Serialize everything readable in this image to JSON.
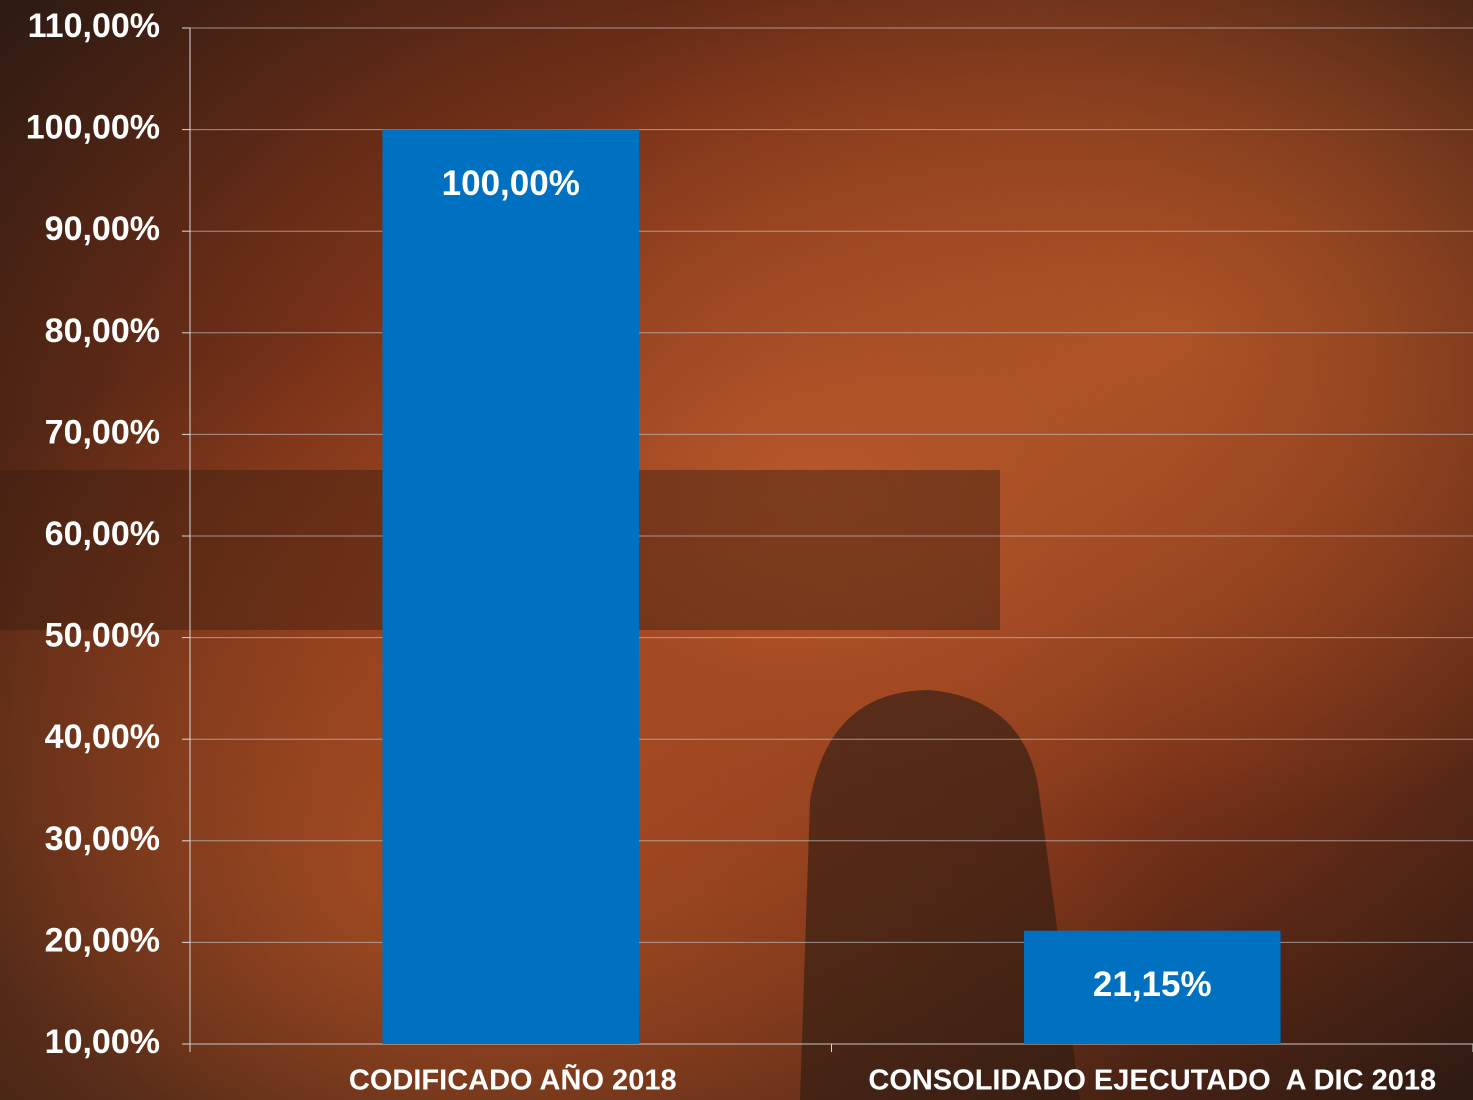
{
  "chart_data": {
    "type": "bar",
    "categories": [
      "CODIFICADO AÑO 2018",
      "CONSOLIDADO EJECUTADO  A DIC 2018"
    ],
    "values": [
      100,
      21.15
    ],
    "value_labels": [
      "100,00%",
      "21,15%"
    ],
    "color": "#0070c0",
    "ylim": [
      10,
      110
    ],
    "yticks": [
      {
        "value": 10,
        "label": "10,00%"
      },
      {
        "value": 20,
        "label": "20,00%"
      },
      {
        "value": 30,
        "label": "30,00%"
      },
      {
        "value": 40,
        "label": "40,00%"
      },
      {
        "value": 50,
        "label": "50,00%"
      },
      {
        "value": 60,
        "label": "60,00%"
      },
      {
        "value": 70,
        "label": "70,00%"
      },
      {
        "value": 80,
        "label": "80,00%"
      },
      {
        "value": 90,
        "label": "90,00%"
      },
      {
        "value": 100,
        "label": "100,00%"
      },
      {
        "value": 110,
        "label": "110,00%"
      }
    ],
    "grid": true
  }
}
